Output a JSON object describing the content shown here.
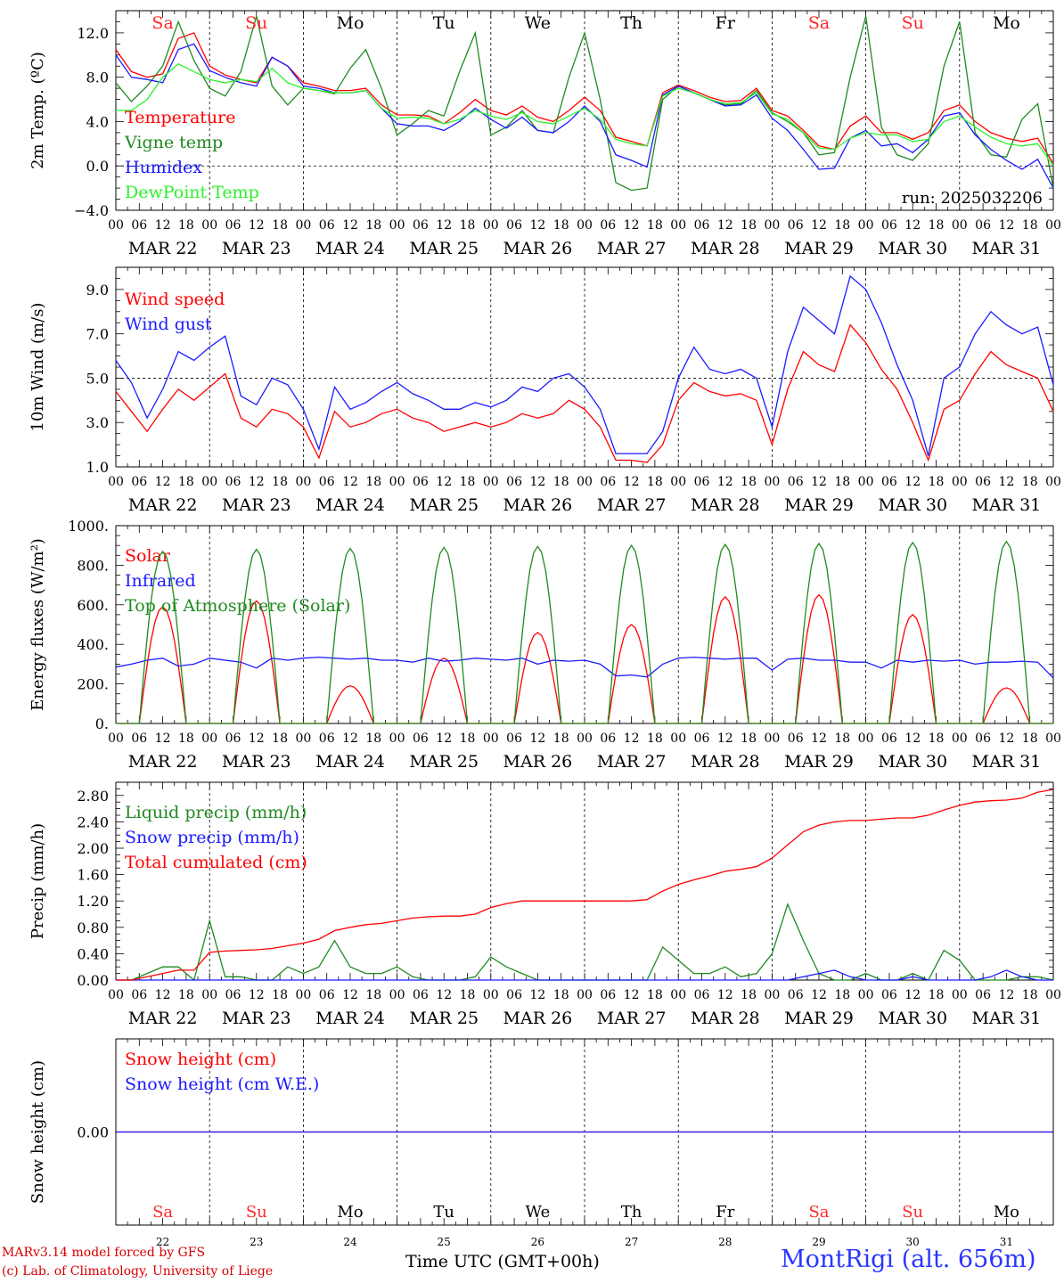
{
  "chart_data": [
    {
      "type": "line",
      "ylabel": "2m Temp. (ºC)",
      "ylim": [
        -4,
        14
      ],
      "yticks": [
        "−4.0",
        "0.0",
        "4.0",
        "8.0",
        "12.0"
      ],
      "ytick_values": [
        -4,
        0,
        4,
        8,
        12
      ],
      "reference_line": 0,
      "annotation": "run: 2025032206",
      "series": [
        {
          "name": "Temperature",
          "color": "#ff0000",
          "values": [
            10.5,
            8.5,
            8.0,
            8.3,
            11.5,
            12.0,
            9.0,
            8.2,
            7.8,
            7.5,
            9.8,
            9.0,
            7.5,
            7.2,
            6.8,
            6.8,
            7.0,
            5.5,
            4.6,
            4.6,
            4.5,
            3.8,
            4.8,
            6.0,
            5.0,
            4.6,
            5.4,
            4.4,
            4.0,
            5.0,
            6.2,
            5.0,
            2.6,
            2.2,
            1.8,
            6.6,
            7.3,
            6.8,
            6.2,
            5.8,
            5.9,
            7.0,
            5.0,
            4.5,
            3.2,
            1.8,
            1.5,
            3.6,
            4.5,
            3.0,
            3.0,
            2.4,
            3.0,
            5.0,
            5.5,
            4.0,
            3.0,
            2.5,
            2.2,
            2.5,
            0.2
          ]
        },
        {
          "name": "Vigne temp",
          "color": "#1f8a1f",
          "values": [
            7.5,
            5.8,
            7.2,
            9.0,
            13.0,
            9.5,
            7.0,
            6.3,
            8.5,
            13.5,
            7.2,
            5.5,
            7.0,
            6.8,
            6.5,
            8.8,
            10.5,
            7.0,
            2.8,
            3.8,
            5.0,
            4.5,
            8.5,
            12.0,
            2.8,
            3.5,
            5.0,
            3.2,
            3.0,
            8.0,
            12.0,
            6.0,
            -1.5,
            -2.2,
            -2.0,
            6.0,
            7.2,
            6.6,
            6.0,
            5.5,
            5.6,
            6.8,
            4.8,
            4.0,
            3.0,
            1.0,
            1.2,
            8.0,
            13.5,
            3.5,
            1.0,
            0.5,
            2.0,
            9.0,
            13.0,
            3.0,
            1.0,
            0.8,
            4.2,
            5.6,
            -2.0
          ]
        },
        {
          "name": "Humidex",
          "color": "#1a1aff",
          "values": [
            10.0,
            8.0,
            7.8,
            7.5,
            10.5,
            11.0,
            8.6,
            8.0,
            7.5,
            7.2,
            9.8,
            9.0,
            7.2,
            7.0,
            6.6,
            6.6,
            6.8,
            5.2,
            3.8,
            3.6,
            3.6,
            3.2,
            4.0,
            5.2,
            4.2,
            3.4,
            4.4,
            3.2,
            3.0,
            4.0,
            5.4,
            4.0,
            1.0,
            0.5,
            -0.1,
            6.4,
            7.2,
            6.6,
            6.0,
            5.4,
            5.5,
            6.4,
            4.3,
            3.2,
            1.5,
            -0.3,
            -0.2,
            2.5,
            3.2,
            1.8,
            2.0,
            1.2,
            2.4,
            4.5,
            4.8,
            2.8,
            1.5,
            0.5,
            -0.3,
            0.6,
            -2.0
          ]
        },
        {
          "name": "DewPoint Temp",
          "color": "#2cf02c",
          "values": [
            5.0,
            5.0,
            6.0,
            8.0,
            9.2,
            8.5,
            7.8,
            7.5,
            7.8,
            7.6,
            8.8,
            7.5,
            7.0,
            6.8,
            6.6,
            6.6,
            6.8,
            5.2,
            4.3,
            4.4,
            4.3,
            3.8,
            4.2,
            5.0,
            4.5,
            4.2,
            4.8,
            4.0,
            3.8,
            4.5,
            5.2,
            4.2,
            2.4,
            2.0,
            1.8,
            6.3,
            7.0,
            6.6,
            6.0,
            5.6,
            5.7,
            6.6,
            4.7,
            4.2,
            3.0,
            1.6,
            1.5,
            2.5,
            3.0,
            2.8,
            2.8,
            2.2,
            2.4,
            4.0,
            4.5,
            3.5,
            2.6,
            2.0,
            1.8,
            2.0,
            0.0
          ]
        }
      ]
    },
    {
      "type": "line",
      "ylabel": "10m Wind (m/s)",
      "ylim": [
        1,
        10
      ],
      "yticks": [
        "1.0",
        "3.0",
        "5.0",
        "7.0",
        "9.0"
      ],
      "ytick_values": [
        1,
        3,
        5,
        7,
        9
      ],
      "reference_line": 5,
      "series": [
        {
          "name": "Wind speed",
          "color": "#ff0000",
          "values": [
            4.4,
            3.5,
            2.6,
            3.6,
            4.5,
            4.0,
            4.6,
            5.2,
            3.2,
            2.8,
            3.6,
            3.4,
            2.8,
            1.4,
            3.5,
            2.8,
            3.0,
            3.4,
            3.6,
            3.2,
            3.0,
            2.6,
            2.8,
            3.0,
            2.8,
            3.0,
            3.4,
            3.2,
            3.4,
            4.0,
            3.6,
            2.8,
            1.3,
            1.3,
            1.2,
            2.0,
            4.0,
            4.8,
            4.4,
            4.2,
            4.3,
            4.0,
            2.0,
            4.5,
            6.2,
            5.6,
            5.3,
            7.4,
            6.6,
            5.4,
            4.5,
            3.0,
            1.3,
            3.6,
            4.0,
            5.2,
            6.2,
            5.6,
            5.3,
            5.0,
            3.5
          ]
        },
        {
          "name": "Wind gust",
          "color": "#1a1aff",
          "values": [
            5.8,
            4.8,
            3.2,
            4.5,
            6.2,
            5.8,
            6.4,
            6.9,
            4.2,
            3.8,
            5.0,
            4.7,
            3.6,
            1.8,
            4.6,
            3.6,
            3.9,
            4.4,
            4.8,
            4.3,
            4.0,
            3.6,
            3.6,
            3.9,
            3.7,
            4.0,
            4.6,
            4.4,
            5.0,
            5.2,
            4.6,
            3.6,
            1.6,
            1.6,
            1.6,
            2.6,
            5.0,
            6.4,
            5.4,
            5.2,
            5.4,
            5.0,
            2.8,
            6.2,
            8.2,
            7.6,
            7.0,
            9.6,
            9.0,
            7.5,
            5.6,
            4.0,
            1.5,
            5.0,
            5.5,
            7.0,
            8.0,
            7.4,
            7.0,
            7.3,
            4.7
          ]
        }
      ]
    },
    {
      "type": "line",
      "ylabel": "Energy fluxes (W/m²)",
      "ylim": [
        0,
        1000
      ],
      "yticks": [
        "0.",
        "200.",
        "400.",
        "600.",
        "800.",
        "1000."
      ],
      "ytick_values": [
        0,
        200,
        400,
        600,
        800,
        1000
      ],
      "series": [
        {
          "name": "Solar",
          "color": "#ff0000",
          "daily_peaks": [
            590,
            620,
            190,
            330,
            460,
            500,
            640,
            650,
            550,
            180
          ]
        },
        {
          "name": "Infrared",
          "color": "#1a1aff",
          "values": [
            285,
            300,
            320,
            330,
            290,
            300,
            330,
            320,
            310,
            280,
            330,
            320,
            330,
            335,
            330,
            325,
            330,
            320,
            320,
            310,
            330,
            315,
            320,
            330,
            325,
            320,
            330,
            300,
            320,
            315,
            320,
            300,
            240,
            245,
            235,
            300,
            330,
            335,
            330,
            325,
            330,
            330,
            270,
            325,
            330,
            320,
            320,
            310,
            310,
            280,
            320,
            310,
            320,
            315,
            320,
            300,
            310,
            310,
            315,
            310,
            230
          ]
        },
        {
          "name": "Top of Atmosphere (Solar)",
          "color": "#1f8a1f",
          "daily_peaks": [
            870,
            880,
            885,
            890,
            895,
            900,
            905,
            910,
            915,
            920
          ]
        }
      ]
    },
    {
      "type": "line",
      "ylabel": "Precip (mm/h)",
      "ylim": [
        0,
        3.0
      ],
      "yticks": [
        "0.00",
        "0.40",
        "0.80",
        "1.20",
        "1.60",
        "2.00",
        "2.40",
        "2.80"
      ],
      "ytick_values": [
        0,
        0.4,
        0.8,
        1.2,
        1.6,
        2.0,
        2.4,
        2.8
      ],
      "series": [
        {
          "name": "Liquid precip (mm/h)",
          "color": "#1f8a1f",
          "values": [
            0,
            0,
            0.1,
            0.2,
            0.2,
            0,
            0.9,
            0.05,
            0.05,
            0,
            0,
            0.2,
            0.1,
            0.2,
            0.6,
            0.2,
            0.1,
            0.1,
            0.2,
            0.05,
            0,
            0,
            0,
            0.05,
            0.35,
            0.2,
            0.1,
            0,
            0,
            0,
            0,
            0,
            0,
            0,
            0,
            0.5,
            0.3,
            0.1,
            0.1,
            0.2,
            0.05,
            0.1,
            0.4,
            1.15,
            0.6,
            0.1,
            0,
            0,
            0.1,
            0,
            0,
            0.1,
            0,
            0.45,
            0.3,
            0,
            0,
            0,
            0.05,
            0.05,
            0
          ]
        },
        {
          "name": "Snow precip (mm/h)",
          "color": "#1a1aff",
          "values": [
            0,
            0,
            0,
            0,
            0,
            0,
            0,
            0,
            0,
            0,
            0,
            0,
            0,
            0,
            0,
            0,
            0,
            0,
            0,
            0,
            0,
            0,
            0,
            0,
            0,
            0,
            0,
            0,
            0,
            0,
            0,
            0,
            0,
            0,
            0,
            0,
            0,
            0,
            0,
            0,
            0,
            0,
            0,
            0,
            0.05,
            0.1,
            0.15,
            0.05,
            0,
            0,
            0,
            0.05,
            0,
            0,
            0,
            0,
            0.05,
            0.15,
            0.05,
            0,
            0
          ]
        },
        {
          "name": "Total cumulated (cm)",
          "color": "#ff0000",
          "values": [
            0,
            0,
            0.05,
            0.1,
            0.15,
            0.15,
            0.42,
            0.44,
            0.45,
            0.46,
            0.48,
            0.52,
            0.56,
            0.62,
            0.75,
            0.8,
            0.84,
            0.86,
            0.9,
            0.94,
            0.96,
            0.97,
            0.97,
            1.0,
            1.1,
            1.16,
            1.2,
            1.2,
            1.2,
            1.2,
            1.2,
            1.2,
            1.2,
            1.2,
            1.22,
            1.35,
            1.45,
            1.52,
            1.58,
            1.65,
            1.68,
            1.72,
            1.85,
            2.05,
            2.25,
            2.35,
            2.4,
            2.42,
            2.42,
            2.44,
            2.46,
            2.46,
            2.5,
            2.58,
            2.65,
            2.7,
            2.72,
            2.73,
            2.76,
            2.85,
            2.89
          ]
        }
      ]
    },
    {
      "type": "line",
      "ylabel": "Snow height (cm)",
      "ylim": [
        -1,
        1
      ],
      "yticks": [
        "0.00"
      ],
      "ytick_values": [
        0
      ],
      "series": [
        {
          "name": "Snow height (cm)",
          "color": "#ff0000",
          "values": [
            0,
            0
          ]
        },
        {
          "name": "Snow height (cm W.E.)",
          "color": "#1a1aff",
          "values": [
            0,
            0
          ]
        }
      ]
    }
  ],
  "days": {
    "dates": [
      "MAR 22",
      "MAR 23",
      "MAR 24",
      "MAR 25",
      "MAR 26",
      "MAR 27",
      "MAR 28",
      "MAR 29",
      "MAR 30",
      "MAR 31"
    ],
    "weekdays": [
      "Sa",
      "Su",
      "Mo",
      "Tu",
      "We",
      "Th",
      "Fr",
      "Sa",
      "Su",
      "Mo"
    ],
    "weekend_color": "#ff2a2a",
    "day_numbers": [
      "22",
      "23",
      "24",
      "25",
      "26",
      "27",
      "28",
      "29",
      "30",
      "31"
    ],
    "hour_ticks": [
      "00",
      "06",
      "12",
      "18"
    ],
    "final_tick": "00"
  },
  "footer": {
    "credit_line1": "MARv3.14 model forced by GFS",
    "credit_line2": "(c) Lab. of Climatology, University of Liege",
    "x_axis_title": "Time UTC (GMT+00h)",
    "station": "MontRigi (alt. 656m)"
  }
}
